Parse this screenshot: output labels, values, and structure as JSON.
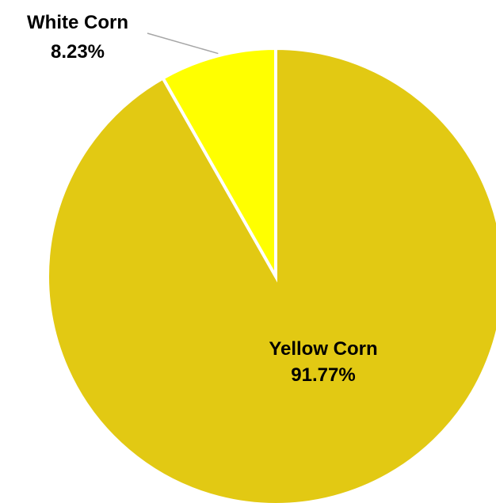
{
  "chart_data": {
    "type": "pie",
    "title": "",
    "start_angle_deg": 0,
    "direction": "clockwise",
    "slices": [
      {
        "label": "Yellow Corn",
        "value": 91.77,
        "value_label": "91.77%",
        "color": "#e2c913"
      },
      {
        "label": "White Corn",
        "value": 8.23,
        "value_label": "8.23%",
        "color": "#ffff00"
      }
    ],
    "legend": "none",
    "data_labels": {
      "Yellow Corn": "inside",
      "White Corn": "outside with leader line"
    }
  }
}
